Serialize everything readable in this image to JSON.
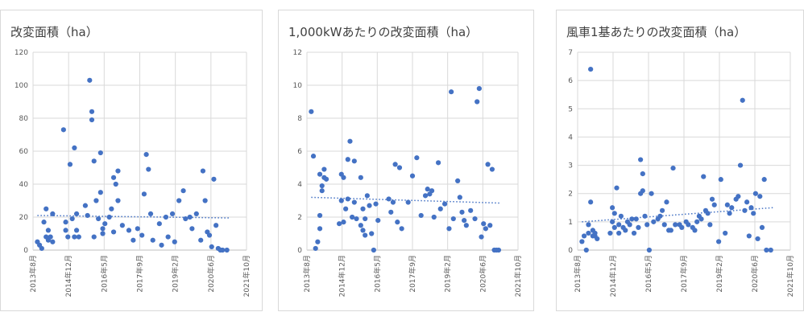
{
  "colors": {
    "marker": "#4472c4",
    "trend": "#4472c4",
    "grid": "#d9d9d9",
    "text": "#595959"
  },
  "x_ticks": [
    "2013年8月",
    "2014年12月",
    "2016年5月",
    "2017年9月",
    "2019年2月",
    "2020年6月",
    "2021年10月"
  ],
  "chart_data": [
    {
      "type": "scatter",
      "title": "改変面積（ha）",
      "xlabel": "",
      "ylabel": "",
      "x_ticks": [
        "2013年8月",
        "2014年12月",
        "2016年5月",
        "2017年9月",
        "2019年2月",
        "2020年6月",
        "2021年10月"
      ],
      "y_ticks": [
        "0",
        "20",
        "40",
        "60",
        "80",
        "100",
        "120"
      ],
      "xlim": [
        "2013-08",
        "2021-10"
      ],
      "ylim": [
        0,
        120
      ],
      "grid": true,
      "trendline": {
        "style": "dotted linear",
        "start": [
          "2013-10",
          21
        ],
        "end": [
          "2021-02",
          19.5
        ]
      },
      "points": [
        [
          "2013-10",
          5
        ],
        [
          "2013-11",
          3
        ],
        [
          "2013-12",
          1
        ],
        [
          "2014-01",
          17
        ],
        [
          "2014-02",
          8
        ],
        [
          "2014-02",
          25
        ],
        [
          "2014-03",
          12
        ],
        [
          "2014-03",
          6
        ],
        [
          "2014-04",
          8
        ],
        [
          "2014-05",
          22
        ],
        [
          "2014-05",
          5
        ],
        [
          "2014-10",
          73
        ],
        [
          "2014-11",
          17
        ],
        [
          "2014-11",
          12
        ],
        [
          "2014-12",
          8
        ],
        [
          "2015-01",
          52
        ],
        [
          "2015-02",
          19
        ],
        [
          "2015-03",
          62
        ],
        [
          "2015-03",
          8
        ],
        [
          "2015-04",
          22
        ],
        [
          "2015-04",
          12
        ],
        [
          "2015-05",
          8
        ],
        [
          "2015-08",
          27
        ],
        [
          "2015-09",
          21
        ],
        [
          "2015-10",
          103
        ],
        [
          "2015-11",
          84
        ],
        [
          "2015-11",
          79
        ],
        [
          "2015-12",
          54
        ],
        [
          "2015-12",
          8
        ],
        [
          "2016-01",
          30
        ],
        [
          "2016-02",
          19
        ],
        [
          "2016-03",
          35
        ],
        [
          "2016-03",
          59
        ],
        [
          "2016-04",
          10
        ],
        [
          "2016-04",
          13
        ],
        [
          "2016-05",
          16
        ],
        [
          "2016-07",
          20
        ],
        [
          "2016-08",
          25
        ],
        [
          "2016-09",
          44
        ],
        [
          "2016-09",
          11
        ],
        [
          "2016-10",
          40
        ],
        [
          "2016-11",
          30
        ],
        [
          "2016-11",
          48
        ],
        [
          "2017-01",
          15
        ],
        [
          "2017-04",
          12
        ],
        [
          "2017-06",
          6
        ],
        [
          "2017-08",
          13
        ],
        [
          "2017-10",
          9
        ],
        [
          "2017-11",
          34
        ],
        [
          "2017-12",
          58
        ],
        [
          "2018-01",
          49
        ],
        [
          "2018-02",
          22
        ],
        [
          "2018-03",
          6
        ],
        [
          "2018-06",
          16
        ],
        [
          "2018-07",
          3
        ],
        [
          "2018-09",
          20
        ],
        [
          "2018-10",
          8
        ],
        [
          "2018-12",
          22
        ],
        [
          "2019-01",
          5
        ],
        [
          "2019-03",
          30
        ],
        [
          "2019-05",
          36
        ],
        [
          "2019-06",
          19
        ],
        [
          "2019-08",
          20
        ],
        [
          "2019-09",
          13
        ],
        [
          "2019-11",
          22
        ],
        [
          "2020-01",
          6
        ],
        [
          "2020-02",
          48
        ],
        [
          "2020-03",
          30
        ],
        [
          "2020-04",
          11
        ],
        [
          "2020-05",
          9
        ],
        [
          "2020-06",
          2
        ],
        [
          "2020-07",
          43
        ],
        [
          "2020-08",
          15
        ],
        [
          "2020-09",
          1
        ],
        [
          "2020-10",
          0
        ],
        [
          "2020-11",
          0
        ],
        [
          "2021-01",
          0
        ]
      ]
    },
    {
      "type": "scatter",
      "title": "1,000kWあたりの改変面積（ha）",
      "xlabel": "",
      "ylabel": "",
      "x_ticks": [
        "2013年8月",
        "2014年12月",
        "2016年5月",
        "2017年9月",
        "2019年2月",
        "2020年6月",
        "2021年10月"
      ],
      "y_ticks": [
        "0",
        "2",
        "4",
        "6",
        "8",
        "10",
        "12"
      ],
      "xlim": [
        "2013-08",
        "2021-10"
      ],
      "ylim": [
        0,
        12
      ],
      "grid": true,
      "trendline": {
        "style": "dotted linear",
        "start": [
          "2013-10",
          3.2
        ],
        "end": [
          "2021-02",
          2.85
        ]
      },
      "points": [
        [
          "2013-10",
          8.4
        ],
        [
          "2013-11",
          5.7
        ],
        [
          "2013-12",
          0.1
        ],
        [
          "2014-01",
          0.5
        ],
        [
          "2014-02",
          1.3
        ],
        [
          "2014-02",
          2.1
        ],
        [
          "2014-02",
          4.6
        ],
        [
          "2014-03",
          3.6
        ],
        [
          "2014-03",
          3.9
        ],
        [
          "2014-04",
          4.4
        ],
        [
          "2014-04",
          4.9
        ],
        [
          "2014-05",
          4.3
        ],
        [
          "2014-11",
          1.6
        ],
        [
          "2014-12",
          4.6
        ],
        [
          "2014-12",
          3.0
        ],
        [
          "2015-01",
          4.4
        ],
        [
          "2015-01",
          1.7
        ],
        [
          "2015-02",
          2.5
        ],
        [
          "2015-03",
          5.5
        ],
        [
          "2015-03",
          3.1
        ],
        [
          "2015-04",
          6.6
        ],
        [
          "2015-05",
          2.0
        ],
        [
          "2015-06",
          5.4
        ],
        [
          "2015-06",
          2.9
        ],
        [
          "2015-07",
          1.9
        ],
        [
          "2015-09",
          4.4
        ],
        [
          "2015-09",
          1.5
        ],
        [
          "2015-10",
          2.5
        ],
        [
          "2015-10",
          1.2
        ],
        [
          "2015-11",
          1.9
        ],
        [
          "2015-11",
          0.9
        ],
        [
          "2015-12",
          3.3
        ],
        [
          "2016-01",
          2.7
        ],
        [
          "2016-02",
          1.0
        ],
        [
          "2016-03",
          0.0
        ],
        [
          "2016-04",
          2.8
        ],
        [
          "2016-05",
          1.8
        ],
        [
          "2016-10",
          3.1
        ],
        [
          "2016-11",
          2.3
        ],
        [
          "2016-12",
          2.9
        ],
        [
          "2017-01",
          5.2
        ],
        [
          "2017-02",
          1.7
        ],
        [
          "2017-03",
          5.0
        ],
        [
          "2017-04",
          1.3
        ],
        [
          "2017-07",
          2.9
        ],
        [
          "2017-09",
          4.5
        ],
        [
          "2017-11",
          5.6
        ],
        [
          "2018-01",
          2.1
        ],
        [
          "2018-03",
          3.3
        ],
        [
          "2018-04",
          3.7
        ],
        [
          "2018-05",
          3.4
        ],
        [
          "2018-06",
          3.6
        ],
        [
          "2018-07",
          2.0
        ],
        [
          "2018-09",
          5.3
        ],
        [
          "2018-10",
          2.5
        ],
        [
          "2018-12",
          2.8
        ],
        [
          "2019-02",
          1.3
        ],
        [
          "2019-03",
          9.6
        ],
        [
          "2019-04",
          1.9
        ],
        [
          "2019-06",
          4.2
        ],
        [
          "2019-07",
          3.2
        ],
        [
          "2019-08",
          2.3
        ],
        [
          "2019-09",
          1.8
        ],
        [
          "2019-10",
          1.5
        ],
        [
          "2019-12",
          2.4
        ],
        [
          "2020-02",
          1.9
        ],
        [
          "2020-03",
          9.0
        ],
        [
          "2020-04",
          9.8
        ],
        [
          "2020-05",
          0.8
        ],
        [
          "2020-06",
          1.6
        ],
        [
          "2020-07",
          1.3
        ],
        [
          "2020-08",
          5.2
        ],
        [
          "2020-09",
          1.5
        ],
        [
          "2020-10",
          4.9
        ],
        [
          "2020-11",
          0.0
        ],
        [
          "2020-12",
          0.0
        ],
        [
          "2021-01",
          0.0
        ]
      ]
    },
    {
      "type": "scatter",
      "title": "風車1基あたりの改変面積（ha）",
      "xlabel": "",
      "ylabel": "",
      "x_ticks": [
        "2013年8月",
        "2014年12月",
        "2016年5月",
        "2017年9月",
        "2019年2月",
        "2020年6月",
        "2021年10月"
      ],
      "y_ticks": [
        "0",
        "1",
        "2",
        "3",
        "4",
        "5",
        "6",
        "7"
      ],
      "xlim": [
        "2013-08",
        "2021-10"
      ],
      "ylim": [
        0,
        7
      ],
      "grid": true,
      "trendline": {
        "style": "dotted linear",
        "start": [
          "2013-10",
          1.0
        ],
        "end": [
          "2021-02",
          1.5
        ]
      },
      "points": [
        [
          "2013-10",
          0.3
        ],
        [
          "2013-11",
          0.5
        ],
        [
          "2013-12",
          0.0
        ],
        [
          "2014-01",
          0.6
        ],
        [
          "2014-01",
          0.9
        ],
        [
          "2014-02",
          6.4
        ],
        [
          "2014-02",
          1.7
        ],
        [
          "2014-03",
          0.7
        ],
        [
          "2014-03",
          0.5
        ],
        [
          "2014-04",
          0.6
        ],
        [
          "2014-04",
          0.5
        ],
        [
          "2014-05",
          0.4
        ],
        [
          "2014-11",
          0.6
        ],
        [
          "2014-12",
          1.5
        ],
        [
          "2014-12",
          1.0
        ],
        [
          "2015-01",
          1.3
        ],
        [
          "2015-01",
          0.8
        ],
        [
          "2015-02",
          2.2
        ],
        [
          "2015-03",
          0.9
        ],
        [
          "2015-03",
          0.6
        ],
        [
          "2015-04",
          1.2
        ],
        [
          "2015-05",
          0.8
        ],
        [
          "2015-06",
          0.7
        ],
        [
          "2015-07",
          1.0
        ],
        [
          "2015-08",
          0.9
        ],
        [
          "2015-09",
          1.1
        ],
        [
          "2015-10",
          0.6
        ],
        [
          "2015-11",
          1.1
        ],
        [
          "2015-12",
          0.8
        ],
        [
          "2016-01",
          3.2
        ],
        [
          "2016-01",
          2.0
        ],
        [
          "2016-02",
          2.1
        ],
        [
          "2016-02",
          2.7
        ],
        [
          "2016-03",
          1.2
        ],
        [
          "2016-04",
          0.9
        ],
        [
          "2016-05",
          0.0
        ],
        [
          "2016-06",
          2.0
        ],
        [
          "2016-07",
          1.0
        ],
        [
          "2016-09",
          1.1
        ],
        [
          "2016-10",
          1.2
        ],
        [
          "2016-11",
          1.4
        ],
        [
          "2016-12",
          0.9
        ],
        [
          "2017-01",
          1.7
        ],
        [
          "2017-02",
          0.7
        ],
        [
          "2017-03",
          0.7
        ],
        [
          "2017-04",
          2.9
        ],
        [
          "2017-05",
          0.9
        ],
        [
          "2017-07",
          0.9
        ],
        [
          "2017-08",
          0.8
        ],
        [
          "2017-10",
          1.0
        ],
        [
          "2017-11",
          0.9
        ],
        [
          "2018-01",
          0.8
        ],
        [
          "2018-02",
          0.7
        ],
        [
          "2018-03",
          1.0
        ],
        [
          "2018-04",
          1.2
        ],
        [
          "2018-05",
          1.1
        ],
        [
          "2018-06",
          2.6
        ],
        [
          "2018-07",
          1.4
        ],
        [
          "2018-08",
          1.3
        ],
        [
          "2018-09",
          0.9
        ],
        [
          "2018-10",
          1.8
        ],
        [
          "2018-11",
          1.6
        ],
        [
          "2019-01",
          0.3
        ],
        [
          "2019-02",
          2.5
        ],
        [
          "2019-04",
          0.6
        ],
        [
          "2019-05",
          1.6
        ],
        [
          "2019-06",
          1.3
        ],
        [
          "2019-07",
          1.5
        ],
        [
          "2019-09",
          1.8
        ],
        [
          "2019-10",
          1.9
        ],
        [
          "2019-11",
          3.0
        ],
        [
          "2019-12",
          5.3
        ],
        [
          "2020-01",
          1.4
        ],
        [
          "2020-02",
          1.7
        ],
        [
          "2020-03",
          0.5
        ],
        [
          "2020-04",
          1.5
        ],
        [
          "2020-05",
          1.3
        ],
        [
          "2020-06",
          2.0
        ],
        [
          "2020-07",
          0.4
        ],
        [
          "2020-08",
          1.9
        ],
        [
          "2020-09",
          0.8
        ],
        [
          "2020-10",
          2.5
        ],
        [
          "2020-11",
          0.0
        ],
        [
          "2021-01",
          0.0
        ]
      ]
    }
  ]
}
